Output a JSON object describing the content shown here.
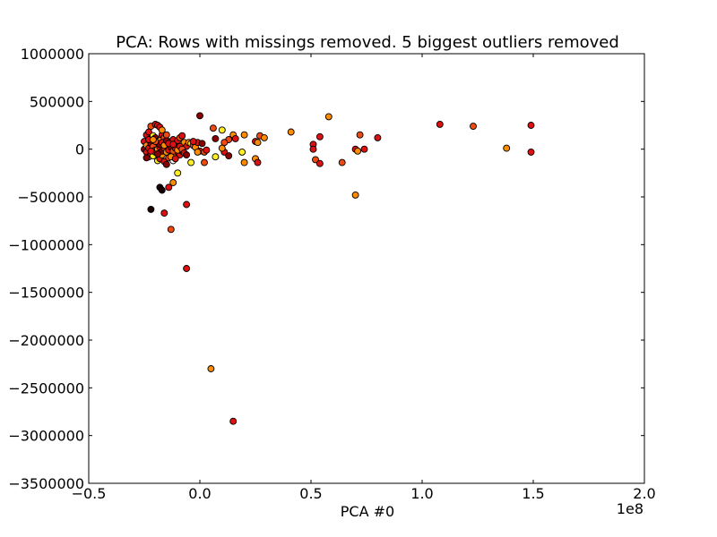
{
  "chart_data": {
    "type": "scatter",
    "title": "PCA: Rows with missings removed. 5 biggest outliers removed",
    "xlabel": "PCA #0",
    "ylabel": "",
    "x_offset_label": "1e8",
    "xlim": [
      -0.5,
      2.0
    ],
    "ylim": [
      -3500000,
      1000000
    ],
    "xticks": [
      -0.5,
      0.0,
      0.5,
      1.0,
      1.5,
      2.0
    ],
    "xtick_labels": [
      "−0.5",
      "0.0",
      "0.5",
      "1.0",
      "1.5",
      "2.0"
    ],
    "yticks": [
      1000000,
      500000,
      0,
      -500000,
      -1000000,
      -1500000,
      -2000000,
      -2500000,
      -3000000,
      -3500000
    ],
    "ytick_labels": [
      "1000000",
      "500000",
      "0",
      "−500000",
      "−1000000",
      "−1500000",
      "−2000000",
      "−2500000",
      "−3000000",
      "−3500000"
    ],
    "grid": false,
    "legend": "none",
    "colors": {
      "black": "#1a0000",
      "dark_red": "#8b0000",
      "red": "#dd1111",
      "orange_red": "#f04a10",
      "orange": "#ff8c00",
      "yellow": "#ffee22",
      "white": "#ffffff"
    },
    "points": [
      {
        "x": -0.18,
        "y": -400000,
        "c": "black"
      },
      {
        "x": -0.17,
        "y": -430000,
        "c": "black"
      },
      {
        "x": -0.22,
        "y": -630000,
        "c": "black"
      },
      {
        "x": -0.16,
        "y": -670000,
        "c": "red"
      },
      {
        "x": -0.14,
        "y": -400000,
        "c": "red"
      },
      {
        "x": -0.12,
        "y": -350000,
        "c": "orange"
      },
      {
        "x": -0.13,
        "y": -840000,
        "c": "orange_red"
      },
      {
        "x": -0.06,
        "y": -580000,
        "c": "red"
      },
      {
        "x": -0.06,
        "y": -1250000,
        "c": "red"
      },
      {
        "x": 0.05,
        "y": -2300000,
        "c": "orange"
      },
      {
        "x": 0.15,
        "y": -2850000,
        "c": "red"
      },
      {
        "x": -0.1,
        "y": -250000,
        "c": "yellow"
      },
      {
        "x": -0.04,
        "y": -140000,
        "c": "yellow"
      },
      {
        "x": 0.02,
        "y": -140000,
        "c": "orange_red"
      },
      {
        "x": 0.07,
        "y": -80000,
        "c": "yellow"
      },
      {
        "x": 0.19,
        "y": -30000,
        "c": "yellow"
      },
      {
        "x": 0.2,
        "y": -140000,
        "c": "orange"
      },
      {
        "x": 0.11,
        "y": -30000,
        "c": "red"
      },
      {
        "x": 0.13,
        "y": -70000,
        "c": "dark_red"
      },
      {
        "x": 0.25,
        "y": -100000,
        "c": "orange"
      },
      {
        "x": 0.26,
        "y": -140000,
        "c": "red"
      },
      {
        "x": 0.25,
        "y": 80000,
        "c": "red"
      },
      {
        "x": 0.26,
        "y": 70000,
        "c": "orange"
      },
      {
        "x": 0.27,
        "y": 140000,
        "c": "orange_red"
      },
      {
        "x": 0.29,
        "y": 120000,
        "c": "orange"
      },
      {
        "x": 0.2,
        "y": 150000,
        "c": "orange"
      },
      {
        "x": 0.15,
        "y": 150000,
        "c": "orange"
      },
      {
        "x": 0.16,
        "y": 110000,
        "c": "red"
      },
      {
        "x": 0.13,
        "y": 100000,
        "c": "orange_red"
      },
      {
        "x": 0.1,
        "y": 200000,
        "c": "yellow"
      },
      {
        "x": 0.06,
        "y": 220000,
        "c": "orange_red"
      },
      {
        "x": 0.07,
        "y": 110000,
        "c": "dark_red"
      },
      {
        "x": 0.11,
        "y": 70000,
        "c": "orange_red"
      },
      {
        "x": 0.1,
        "y": 10000,
        "c": "orange"
      },
      {
        "x": 0.0,
        "y": 350000,
        "c": "dark_red"
      },
      {
        "x": 0.41,
        "y": 180000,
        "c": "orange"
      },
      {
        "x": 0.51,
        "y": 50000,
        "c": "red"
      },
      {
        "x": 0.51,
        "y": 0,
        "c": "red"
      },
      {
        "x": 0.54,
        "y": 130000,
        "c": "red"
      },
      {
        "x": 0.58,
        "y": 340000,
        "c": "orange"
      },
      {
        "x": 0.52,
        "y": -110000,
        "c": "orange_red"
      },
      {
        "x": 0.54,
        "y": -150000,
        "c": "red"
      },
      {
        "x": 0.64,
        "y": -140000,
        "c": "orange_red"
      },
      {
        "x": 0.7,
        "y": 0,
        "c": "red"
      },
      {
        "x": 0.71,
        "y": -20000,
        "c": "orange"
      },
      {
        "x": 0.72,
        "y": 150000,
        "c": "orange_red"
      },
      {
        "x": 0.74,
        "y": 0,
        "c": "red"
      },
      {
        "x": 0.8,
        "y": 120000,
        "c": "red"
      },
      {
        "x": 0.7,
        "y": -480000,
        "c": "orange"
      },
      {
        "x": 1.08,
        "y": 260000,
        "c": "red"
      },
      {
        "x": 1.23,
        "y": 240000,
        "c": "orange_red"
      },
      {
        "x": 1.38,
        "y": 10000,
        "c": "orange"
      },
      {
        "x": 1.49,
        "y": 250000,
        "c": "red"
      },
      {
        "x": 1.49,
        "y": -30000,
        "c": "red"
      },
      {
        "x": -0.25,
        "y": 80000,
        "c": "red"
      },
      {
        "x": -0.24,
        "y": 150000,
        "c": "red"
      },
      {
        "x": -0.23,
        "y": 180000,
        "c": "red"
      },
      {
        "x": -0.22,
        "y": 240000,
        "c": "orange_red"
      },
      {
        "x": -0.2,
        "y": 260000,
        "c": "red"
      },
      {
        "x": -0.19,
        "y": 250000,
        "c": "red"
      },
      {
        "x": -0.18,
        "y": 230000,
        "c": "red"
      },
      {
        "x": -0.21,
        "y": 140000,
        "c": "yellow"
      },
      {
        "x": -0.2,
        "y": 120000,
        "c": "dark_red"
      },
      {
        "x": -0.19,
        "y": 60000,
        "c": "red"
      },
      {
        "x": -0.18,
        "y": 90000,
        "c": "orange"
      },
      {
        "x": -0.17,
        "y": 150000,
        "c": "red"
      },
      {
        "x": -0.16,
        "y": 120000,
        "c": "orange_red"
      },
      {
        "x": -0.15,
        "y": 60000,
        "c": "red"
      },
      {
        "x": -0.14,
        "y": 30000,
        "c": "white"
      },
      {
        "x": -0.13,
        "y": 80000,
        "c": "orange"
      },
      {
        "x": -0.12,
        "y": 100000,
        "c": "red"
      },
      {
        "x": -0.11,
        "y": 50000,
        "c": "dark_red"
      },
      {
        "x": -0.1,
        "y": 90000,
        "c": "red"
      },
      {
        "x": -0.09,
        "y": 120000,
        "c": "orange_red"
      },
      {
        "x": -0.08,
        "y": 140000,
        "c": "red"
      },
      {
        "x": -0.07,
        "y": 70000,
        "c": "orange"
      },
      {
        "x": -0.06,
        "y": 30000,
        "c": "red"
      },
      {
        "x": -0.05,
        "y": 70000,
        "c": "orange"
      },
      {
        "x": -0.04,
        "y": 60000,
        "c": "yellow"
      },
      {
        "x": -0.03,
        "y": 40000,
        "c": "orange_red"
      },
      {
        "x": -0.02,
        "y": 20000,
        "c": "orange"
      },
      {
        "x": -0.01,
        "y": 70000,
        "c": "red"
      },
      {
        "x": 0.0,
        "y": -20000,
        "c": "red"
      },
      {
        "x": 0.02,
        "y": -30000,
        "c": "orange_red"
      },
      {
        "x": -0.25,
        "y": 0,
        "c": "dark_red"
      },
      {
        "x": -0.24,
        "y": -30000,
        "c": "red"
      },
      {
        "x": -0.23,
        "y": -80000,
        "c": "orange"
      },
      {
        "x": -0.22,
        "y": -50000,
        "c": "red"
      },
      {
        "x": -0.21,
        "y": -70000,
        "c": "yellow"
      },
      {
        "x": -0.2,
        "y": -30000,
        "c": "orange_red"
      },
      {
        "x": -0.19,
        "y": -120000,
        "c": "yellow"
      },
      {
        "x": -0.18,
        "y": -100000,
        "c": "red"
      },
      {
        "x": -0.17,
        "y": -60000,
        "c": "orange"
      },
      {
        "x": -0.16,
        "y": -130000,
        "c": "red"
      },
      {
        "x": -0.15,
        "y": -160000,
        "c": "dark_red"
      },
      {
        "x": -0.14,
        "y": -90000,
        "c": "orange_red"
      },
      {
        "x": -0.13,
        "y": -50000,
        "c": "red"
      },
      {
        "x": -0.12,
        "y": -120000,
        "c": "white"
      },
      {
        "x": -0.11,
        "y": -70000,
        "c": "orange"
      },
      {
        "x": -0.1,
        "y": -30000,
        "c": "red"
      },
      {
        "x": -0.09,
        "y": -60000,
        "c": "red"
      },
      {
        "x": -0.08,
        "y": -20000,
        "c": "dark_red"
      },
      {
        "x": -0.24,
        "y": 40000,
        "c": "orange"
      },
      {
        "x": -0.23,
        "y": 10000,
        "c": "red"
      },
      {
        "x": -0.22,
        "y": 60000,
        "c": "dark_red"
      },
      {
        "x": -0.21,
        "y": 30000,
        "c": "orange_red"
      },
      {
        "x": -0.2,
        "y": -10000,
        "c": "red"
      },
      {
        "x": -0.19,
        "y": 0,
        "c": "orange"
      },
      {
        "x": -0.18,
        "y": 20000,
        "c": "red"
      },
      {
        "x": -0.17,
        "y": -20000,
        "c": "dark_red"
      },
      {
        "x": -0.16,
        "y": 10000,
        "c": "red"
      },
      {
        "x": -0.15,
        "y": -30000,
        "c": "orange"
      },
      {
        "x": -0.14,
        "y": -10000,
        "c": "red"
      },
      {
        "x": -0.13,
        "y": 20000,
        "c": "dark_red"
      },
      {
        "x": -0.12,
        "y": -20000,
        "c": "orange_red"
      },
      {
        "x": -0.11,
        "y": 10000,
        "c": "red"
      },
      {
        "x": -0.1,
        "y": -10000,
        "c": "orange"
      },
      {
        "x": -0.09,
        "y": 30000,
        "c": "red"
      },
      {
        "x": -0.08,
        "y": 0,
        "c": "orange_red"
      },
      {
        "x": -0.07,
        "y": -40000,
        "c": "red"
      },
      {
        "x": -0.18,
        "y": 50000,
        "c": "dark_red"
      },
      {
        "x": -0.17,
        "y": 70000,
        "c": "red"
      },
      {
        "x": -0.16,
        "y": 40000,
        "c": "orange"
      },
      {
        "x": -0.15,
        "y": 90000,
        "c": "dark_red"
      },
      {
        "x": -0.14,
        "y": 60000,
        "c": "red"
      },
      {
        "x": -0.13,
        "y": -80000,
        "c": "orange"
      },
      {
        "x": -0.12,
        "y": 50000,
        "c": "red"
      },
      {
        "x": -0.2,
        "y": 80000,
        "c": "orange_red"
      },
      {
        "x": -0.22,
        "y": -20000,
        "c": "red"
      },
      {
        "x": -0.24,
        "y": -90000,
        "c": "dark_red"
      },
      {
        "x": -0.23,
        "y": 100000,
        "c": "red"
      },
      {
        "x": -0.21,
        "y": 100000,
        "c": "orange"
      },
      {
        "x": -0.19,
        "y": -50000,
        "c": "dark_red"
      },
      {
        "x": -0.17,
        "y": 200000,
        "c": "orange"
      },
      {
        "x": -0.15,
        "y": 150000,
        "c": "orange_red"
      },
      {
        "x": -0.11,
        "y": -100000,
        "c": "red"
      },
      {
        "x": -0.06,
        "y": -60000,
        "c": "dark_red"
      },
      {
        "x": -0.03,
        "y": 80000,
        "c": "red"
      },
      {
        "x": -0.01,
        "y": -30000,
        "c": "orange"
      },
      {
        "x": 0.01,
        "y": 60000,
        "c": "dark_red"
      },
      {
        "x": 0.03,
        "y": -10000,
        "c": "red"
      }
    ]
  }
}
